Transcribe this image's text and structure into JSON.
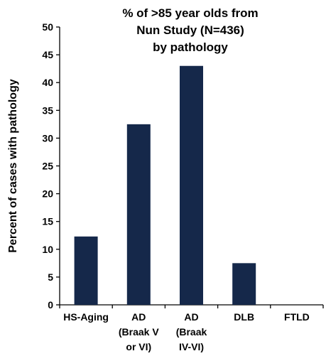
{
  "chart_data": {
    "type": "bar",
    "title": [
      "% of >85 year olds from",
      "Nun Study (N=436)",
      "by pathology"
    ],
    "ylabel": "Percent of cases with pathology",
    "xlabel": "",
    "categories": [
      [
        "HS-Aging"
      ],
      [
        "AD",
        "(Braak V",
        "or VI)"
      ],
      [
        "AD",
        "(Braak",
        "IV-VI)"
      ],
      [
        "DLB"
      ],
      [
        "FTLD"
      ]
    ],
    "values": [
      12.3,
      32.5,
      43.0,
      7.5,
      0
    ],
    "ylim": [
      0,
      50
    ],
    "yticks": [
      0,
      5,
      10,
      15,
      20,
      25,
      30,
      35,
      40,
      45,
      50
    ],
    "bar_color": "#15284a",
    "grid": false,
    "legend": "none"
  }
}
